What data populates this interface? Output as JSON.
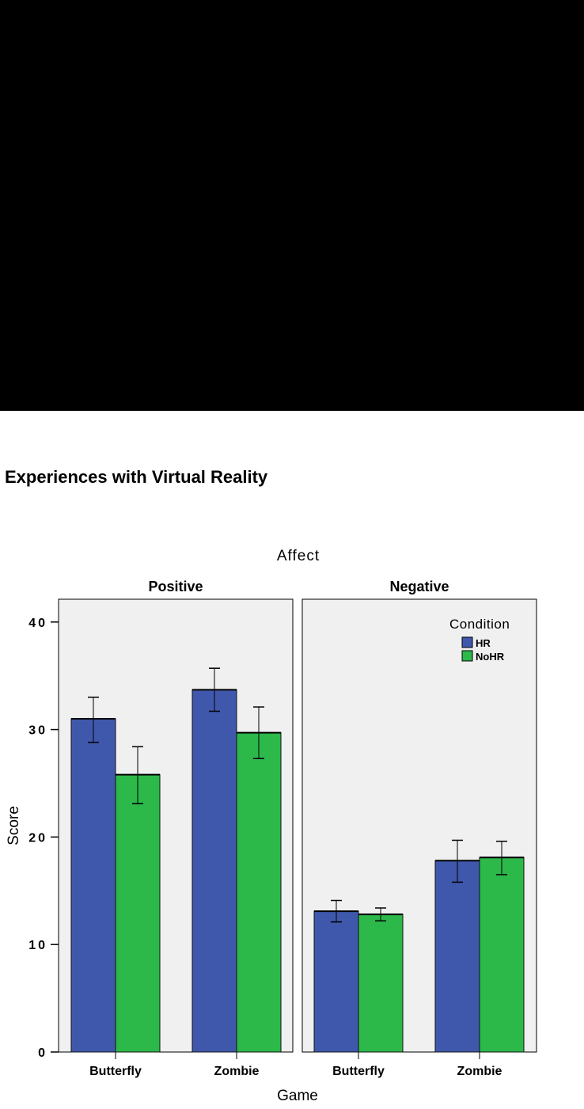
{
  "page": {
    "title": "Experiences with Virtual Reality"
  },
  "chart_data": {
    "type": "bar",
    "title": "Affect",
    "xlabel": "Game",
    "ylabel": "Score",
    "ylim": [
      0,
      42
    ],
    "yticks": [
      0,
      10,
      20,
      30,
      40
    ],
    "grid": false,
    "legend": {
      "title": "Condition",
      "placement": "top-right"
    },
    "panels": [
      {
        "name": "Positive",
        "categories": [
          "Butterfly",
          "Zombie"
        ],
        "series": [
          {
            "name": "HR",
            "values": [
              31.0,
              33.7
            ],
            "err_low": [
              28.8,
              31.7
            ],
            "err_high": [
              33.0,
              35.7
            ]
          },
          {
            "name": "NoHR",
            "values": [
              25.8,
              29.7
            ],
            "err_low": [
              23.1,
              27.3
            ],
            "err_high": [
              28.4,
              32.1
            ]
          }
        ]
      },
      {
        "name": "Negative",
        "categories": [
          "Butterfly",
          "Zombie"
        ],
        "series": [
          {
            "name": "HR",
            "values": [
              13.1,
              17.8
            ],
            "err_low": [
              12.1,
              15.8
            ],
            "err_high": [
              14.1,
              19.7
            ]
          },
          {
            "name": "NoHR",
            "values": [
              12.8,
              18.1
            ],
            "err_low": [
              12.2,
              16.5
            ],
            "err_high": [
              13.4,
              19.6
            ]
          }
        ]
      }
    ],
    "colors": {
      "HR": "#3f58ab",
      "NoHR": "#2db84a",
      "panel_bg": "#f0f0f0"
    }
  }
}
